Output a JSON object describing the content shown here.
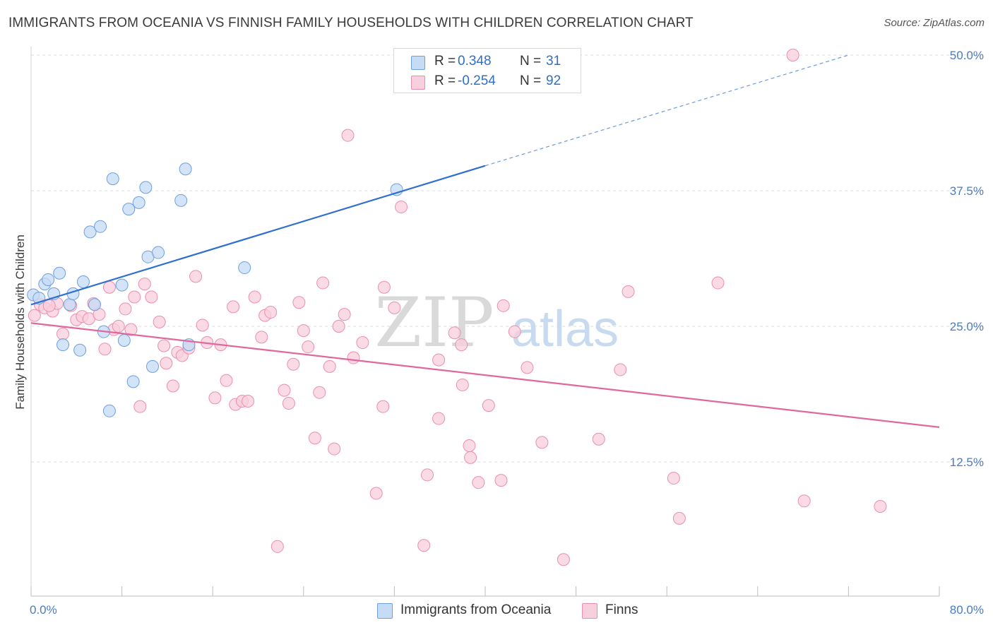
{
  "header": {
    "title": "IMMIGRANTS FROM OCEANIA VS FINNISH FAMILY HOUSEHOLDS WITH CHILDREN CORRELATION CHART",
    "source": "Source: ZipAtlas.com"
  },
  "watermark": {
    "zip": "ZIP",
    "atlas": "atlas"
  },
  "legend": {
    "series1": {
      "r_label": "R =",
      "r_value": "0.348",
      "n_label": "N =",
      "n_value": "31",
      "color": "#a9c8f0"
    },
    "series2": {
      "r_label": "R =",
      "r_value": "-0.254",
      "n_label": "N =",
      "n_value": "92",
      "color": "#f6bccd"
    }
  },
  "bottom_legend": {
    "series1_label": "Immigrants from Oceania",
    "series2_label": "Finns"
  },
  "colors": {
    "blue_point_fill": "#c6dbf5",
    "blue_point_stroke": "#6d9fdc",
    "blue_line": "#2f6fcf",
    "pink_point_fill": "#f8cfdc",
    "pink_point_stroke": "#e98fad",
    "pink_line": "#e0689a",
    "grid": "#dcdcdc",
    "axis_text": "#4a7cc2"
  },
  "chart_data": {
    "type": "scatter",
    "title": "IMMIGRANTS FROM OCEANIA VS FINNISH FAMILY HOUSEHOLDS WITH CHILDREN CORRELATION CHART",
    "xlabel": "",
    "ylabel": "Family Households with Children",
    "xlim": [
      0,
      80
    ],
    "ylim": [
      0,
      52
    ],
    "x_tick_labels": [
      "0.0%",
      "80.0%"
    ],
    "y_ticks": [
      12.5,
      25.0,
      37.5,
      50.0
    ],
    "y_tick_labels": [
      "12.5%",
      "25.0%",
      "37.5%",
      "50.0%"
    ],
    "grid": true,
    "legend_position": "top-center",
    "series": [
      {
        "name": "Immigrants from Oceania",
        "r": 0.348,
        "n": 31,
        "trend": {
          "x": [
            0,
            40
          ],
          "y": [
            27.0,
            39.8
          ],
          "dashed_to": [
            72,
            50.0
          ]
        },
        "points": [
          [
            0.2,
            27.9
          ],
          [
            0.7,
            27.6
          ],
          [
            1.2,
            28.9
          ],
          [
            1.5,
            29.3
          ],
          [
            2.0,
            28.0
          ],
          [
            2.5,
            29.9
          ],
          [
            2.8,
            23.3
          ],
          [
            3.4,
            27.0
          ],
          [
            3.7,
            28.0
          ],
          [
            4.3,
            22.8
          ],
          [
            4.6,
            29.1
          ],
          [
            5.2,
            33.7
          ],
          [
            5.6,
            27.0
          ],
          [
            6.1,
            34.2
          ],
          [
            6.4,
            24.5
          ],
          [
            6.9,
            17.2
          ],
          [
            7.2,
            38.6
          ],
          [
            8.0,
            28.8
          ],
          [
            8.2,
            23.7
          ],
          [
            8.6,
            35.8
          ],
          [
            9.0,
            19.9
          ],
          [
            9.5,
            36.4
          ],
          [
            10.1,
            37.8
          ],
          [
            10.3,
            31.4
          ],
          [
            10.7,
            21.3
          ],
          [
            11.2,
            31.8
          ],
          [
            13.2,
            36.6
          ],
          [
            13.6,
            39.5
          ],
          [
            13.9,
            23.3
          ],
          [
            18.8,
            30.4
          ],
          [
            32.2,
            37.6
          ]
        ]
      },
      {
        "name": "Finns",
        "r": -0.254,
        "n": 92,
        "trend": {
          "x": [
            0,
            80
          ],
          "y": [
            25.3,
            15.7
          ]
        },
        "points": [
          [
            0.3,
            26.0
          ],
          [
            0.8,
            27.0
          ],
          [
            1.2,
            26.7
          ],
          [
            1.9,
            26.4
          ],
          [
            2.3,
            27.1
          ],
          [
            2.8,
            24.3
          ],
          [
            3.5,
            26.9
          ],
          [
            4.0,
            25.6
          ],
          [
            4.5,
            25.9
          ],
          [
            5.1,
            25.7
          ],
          [
            5.5,
            27.1
          ],
          [
            6.0,
            26.1
          ],
          [
            6.5,
            22.9
          ],
          [
            6.9,
            28.6
          ],
          [
            7.3,
            24.7
          ],
          [
            7.7,
            25.0
          ],
          [
            8.3,
            26.6
          ],
          [
            8.8,
            24.7
          ],
          [
            9.1,
            27.7
          ],
          [
            9.6,
            17.6
          ],
          [
            10.0,
            28.9
          ],
          [
            10.6,
            27.7
          ],
          [
            11.3,
            25.4
          ],
          [
            11.7,
            23.2
          ],
          [
            11.9,
            21.6
          ],
          [
            12.5,
            19.5
          ],
          [
            12.9,
            22.6
          ],
          [
            13.3,
            22.3
          ],
          [
            13.9,
            23.0
          ],
          [
            14.5,
            29.6
          ],
          [
            15.1,
            25.1
          ],
          [
            15.5,
            23.5
          ],
          [
            16.2,
            18.4
          ],
          [
            16.7,
            23.3
          ],
          [
            17.2,
            20.0
          ],
          [
            17.8,
            26.8
          ],
          [
            18.0,
            17.8
          ],
          [
            18.6,
            18.1
          ],
          [
            19.1,
            18.1
          ],
          [
            19.7,
            27.7
          ],
          [
            20.3,
            24.0
          ],
          [
            20.6,
            26.0
          ],
          [
            21.1,
            26.3
          ],
          [
            21.7,
            4.7
          ],
          [
            22.3,
            19.1
          ],
          [
            22.7,
            17.9
          ],
          [
            23.1,
            21.5
          ],
          [
            23.6,
            27.2
          ],
          [
            24.0,
            24.6
          ],
          [
            24.4,
            23.1
          ],
          [
            25.0,
            14.7
          ],
          [
            25.4,
            18.9
          ],
          [
            25.7,
            29.0
          ],
          [
            26.3,
            21.3
          ],
          [
            26.7,
            13.7
          ],
          [
            27.1,
            25.0
          ],
          [
            27.6,
            26.1
          ],
          [
            27.9,
            42.6
          ],
          [
            28.4,
            22.1
          ],
          [
            29.2,
            23.5
          ],
          [
            30.4,
            9.6
          ],
          [
            31.0,
            17.6
          ],
          [
            31.1,
            28.6
          ],
          [
            32.0,
            26.7
          ],
          [
            32.6,
            36.0
          ],
          [
            34.6,
            4.8
          ],
          [
            34.9,
            11.3
          ],
          [
            35.9,
            16.5
          ],
          [
            35.9,
            21.9
          ],
          [
            37.3,
            24.4
          ],
          [
            37.9,
            23.3
          ],
          [
            38.0,
            19.6
          ],
          [
            38.6,
            14.0
          ],
          [
            38.7,
            12.9
          ],
          [
            39.4,
            10.6
          ],
          [
            40.3,
            17.7
          ],
          [
            41.4,
            10.8
          ],
          [
            41.6,
            26.9
          ],
          [
            42.6,
            24.5
          ],
          [
            43.7,
            21.2
          ],
          [
            45.0,
            14.3
          ],
          [
            46.9,
            3.5
          ],
          [
            50.0,
            14.6
          ],
          [
            51.9,
            21.0
          ],
          [
            52.6,
            28.2
          ],
          [
            56.6,
            11.0
          ],
          [
            57.1,
            7.3
          ],
          [
            60.5,
            29.0
          ],
          [
            67.1,
            50.0
          ],
          [
            68.1,
            8.9
          ],
          [
            74.8,
            8.4
          ],
          [
            1.6,
            26.9
          ]
        ]
      }
    ]
  }
}
